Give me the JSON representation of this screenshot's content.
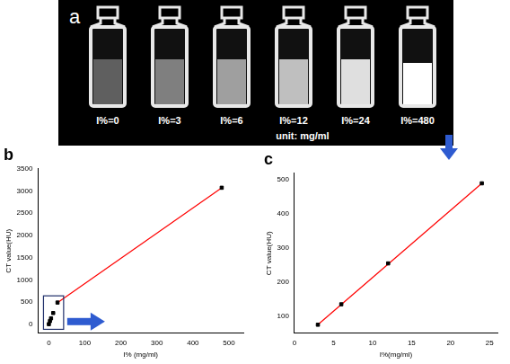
{
  "image_panel": {
    "label": "a",
    "labels": [
      "I%=0",
      "I%=3",
      "I%=6",
      "I%=12",
      "I%=24",
      "I%=480"
    ],
    "note": "unit: mg/ml"
  },
  "chart_data": [
    {
      "type": "scatter",
      "title": "b",
      "x_label": "I% (mg/ml)",
      "y_label": "CT value(HU)",
      "xlim": [
        -30,
        540
      ],
      "xticks": [
        0,
        100,
        200,
        300,
        400,
        500
      ],
      "ylim": [
        -200,
        3500
      ],
      "yticks": [
        0,
        500,
        1000,
        1500,
        2000,
        2500,
        3000,
        3500
      ],
      "grid": false,
      "series": [
        {
          "type": "scatter",
          "marker": "square",
          "color": "#000000",
          "x": [
            0,
            3,
            6,
            12,
            24,
            480
          ],
          "values": [
            5,
            75,
            135,
            255,
            490,
            3070
          ]
        },
        {
          "type": "line",
          "line_style": "solid",
          "color": "#ff0000",
          "x": [
            24,
            480
          ],
          "values": [
            490,
            3070
          ]
        }
      ]
    },
    {
      "type": "scatter",
      "title": "c",
      "x_label": "I%(mg/ml)",
      "y_label": "CT value(HU)",
      "xlim": [
        0,
        26
      ],
      "xticks": [
        0,
        5,
        10,
        15,
        20,
        25
      ],
      "ylim": [
        50,
        520
      ],
      "yticks": [
        100,
        200,
        300,
        400,
        500
      ],
      "grid": false,
      "series": [
        {
          "type": "scatter",
          "marker": "square",
          "color": "#000000",
          "x": [
            3,
            6,
            12,
            24
          ],
          "values": [
            75,
            135,
            255,
            490
          ]
        },
        {
          "type": "line",
          "line_style": "solid",
          "color": "#ff0000",
          "x": [
            3,
            24
          ],
          "values": [
            75,
            490
          ]
        }
      ]
    }
  ]
}
